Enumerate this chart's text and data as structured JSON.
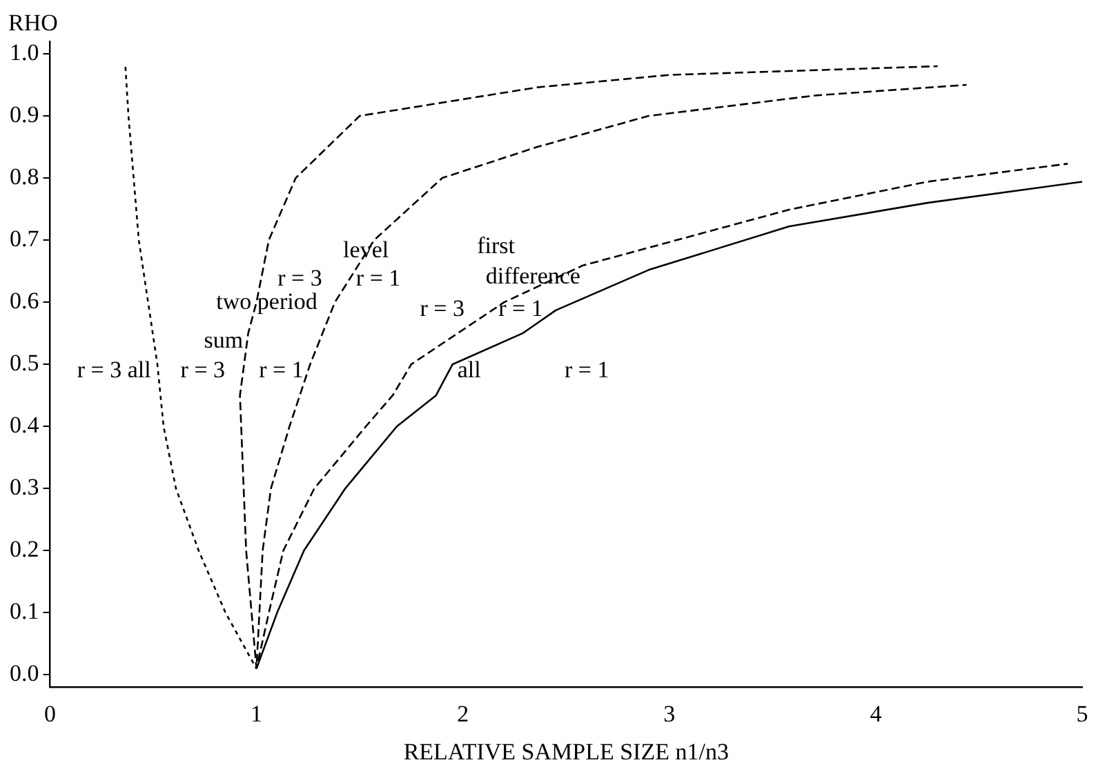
{
  "chart_data": {
    "type": "line",
    "xlabel": "RELATIVE SAMPLE SIZE n1/n3",
    "ylabel": "RHO",
    "xlim": [
      0,
      5
    ],
    "xticks": [
      0,
      1,
      2,
      3,
      4,
      5
    ],
    "ylim": [
      -0.02,
      1.02
    ],
    "yticks": [
      {
        "value": 0,
        "label": "0.0"
      },
      0.1,
      0.2,
      0.3,
      0.4,
      0.5,
      0.6,
      0.7,
      0.8,
      0.9,
      {
        "value": 1,
        "label": "1.0"
      }
    ],
    "grid": false,
    "legend": false,
    "marker": "none",
    "series": [
      {
        "color": "#000000",
        "line_style": "dotted",
        "x": [
          0.365,
          0.38,
          0.43,
          0.52,
          0.55,
          0.61,
          0.72,
          0.85,
          1
        ],
        "values": [
          0.98,
          0.9,
          0.7,
          0.5,
          0.4,
          0.3,
          0.2,
          0.1,
          0.01
        ]
      },
      {
        "color": "#000000",
        "line_style": "dashed",
        "x": [
          1,
          0.95,
          0.92,
          0.96,
          1,
          1.06,
          1.19,
          1.5,
          2.36,
          3,
          4.3
        ],
        "values": [
          0.01,
          0.2,
          0.45,
          0.55,
          0.6,
          0.7,
          0.8,
          0.9,
          0.946,
          0.966,
          0.98
        ]
      },
      {
        "color": "#000000",
        "line_style": "dashed",
        "x": [
          1,
          1.03,
          1.07,
          1.16,
          1.26,
          1.38,
          1.57,
          1.9,
          2.36,
          2.9,
          3.71,
          4.44
        ],
        "values": [
          0.01,
          0.2,
          0.3,
          0.4,
          0.5,
          0.6,
          0.7,
          0.8,
          0.85,
          0.9,
          0.933,
          0.95
        ]
      },
      {
        "color": "#000000",
        "line_style": "dashed",
        "x": [
          1,
          1.06,
          1.13,
          1.28,
          1.53,
          1.66,
          1.75,
          2.2,
          2.58,
          3.58,
          4.25,
          4.93
        ],
        "values": [
          0.01,
          0.1,
          0.2,
          0.3,
          0.4,
          0.45,
          0.5,
          0.6,
          0.659,
          0.749,
          0.794,
          0.823
        ]
      },
      {
        "color": "#000000",
        "line_style": "solid",
        "x": [
          1,
          1.1,
          1.23,
          1.43,
          1.68,
          1.87,
          1.95,
          2.29,
          2.45,
          2.9,
          3.58,
          4.25,
          5
        ],
        "values": [
          0.01,
          0.1,
          0.2,
          0.3,
          0.4,
          0.45,
          0.5,
          0.55,
          0.587,
          0.652,
          0.722,
          0.76,
          0.794
        ]
      }
    ],
    "annotations": [
      "r = 3 all",
      "r = 3",
      "r = 1",
      "two period",
      "sum",
      "level",
      "r = 3",
      "r = 1",
      "first",
      "difference",
      "r = 3",
      "r = 1",
      "all",
      "r = 1"
    ]
  }
}
